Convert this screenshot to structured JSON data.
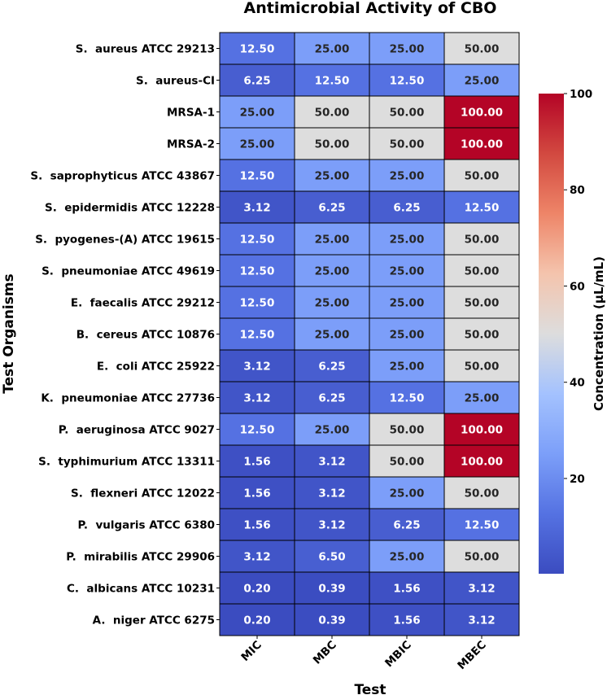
{
  "chart_data": {
    "type": "heatmap",
    "title": "Antimicrobial Activity of CBO",
    "xlabel": "Test",
    "ylabel": "Test Organisms",
    "columns": [
      "MIC",
      "MBC",
      "MBIC",
      "MBEC"
    ],
    "rows": [
      "S.  aureus ATCC 29213",
      "S.  aureus-CI",
      "MRSA-1",
      "MRSA-2",
      "S.  saprophyticus ATCC 43867",
      "S.  epidermidis ATCC 12228",
      "S.  pyogenes-(A) ATCC 19615",
      "S.  pneumoniae ATCC 49619",
      "E.  faecalis ATCC 29212",
      "B.  cereus ATCC 10876",
      "E.  coli ATCC 25922",
      "K.  pneumoniae ATCC 27736",
      "P.  aeruginosa ATCC 9027",
      "S.  typhimurium ATCC 13311",
      "S.  flexneri ATCC 12022",
      "P.  vulgaris ATCC 6380",
      "P.  mirabilis ATCC 29906",
      "C.  albicans ATCC 10231",
      "A.  niger ATCC 6275"
    ],
    "values": [
      [
        12.5,
        25.0,
        25.0,
        50.0
      ],
      [
        6.25,
        12.5,
        12.5,
        25.0
      ],
      [
        25.0,
        50.0,
        50.0,
        100.0
      ],
      [
        25.0,
        50.0,
        50.0,
        100.0
      ],
      [
        12.5,
        25.0,
        25.0,
        50.0
      ],
      [
        3.12,
        6.25,
        6.25,
        12.5
      ],
      [
        12.5,
        25.0,
        25.0,
        50.0
      ],
      [
        12.5,
        25.0,
        25.0,
        50.0
      ],
      [
        12.5,
        25.0,
        25.0,
        50.0
      ],
      [
        12.5,
        25.0,
        25.0,
        50.0
      ],
      [
        3.12,
        6.25,
        25.0,
        50.0
      ],
      [
        3.12,
        6.25,
        12.5,
        25.0
      ],
      [
        12.5,
        25.0,
        50.0,
        100.0
      ],
      [
        1.56,
        3.12,
        50.0,
        100.0
      ],
      [
        1.56,
        3.12,
        25.0,
        50.0
      ],
      [
        1.56,
        3.12,
        6.25,
        12.5
      ],
      [
        3.12,
        6.5,
        25.0,
        50.0
      ],
      [
        0.2,
        0.39,
        1.56,
        3.12
      ],
      [
        0.2,
        0.39,
        1.56,
        3.12
      ]
    ],
    "cell_labels": [
      [
        "12.50",
        "25.00",
        "25.00",
        "50.00"
      ],
      [
        "6.25",
        "12.50",
        "12.50",
        "25.00"
      ],
      [
        "25.00",
        "50.00",
        "50.00",
        "100.00"
      ],
      [
        "25.00",
        "50.00",
        "50.00",
        "100.00"
      ],
      [
        "12.50",
        "25.00",
        "25.00",
        "50.00"
      ],
      [
        "3.12",
        "6.25",
        "6.25",
        "12.50"
      ],
      [
        "12.50",
        "25.00",
        "25.00",
        "50.00"
      ],
      [
        "12.50",
        "25.00",
        "25.00",
        "50.00"
      ],
      [
        "12.50",
        "25.00",
        "25.00",
        "50.00"
      ],
      [
        "12.50",
        "25.00",
        "25.00",
        "50.00"
      ],
      [
        "3.12",
        "6.25",
        "25.00",
        "50.00"
      ],
      [
        "3.12",
        "6.25",
        "12.50",
        "25.00"
      ],
      [
        "12.50",
        "25.00",
        "50.00",
        "100.00"
      ],
      [
        "1.56",
        "3.12",
        "50.00",
        "100.00"
      ],
      [
        "1.56",
        "3.12",
        "25.00",
        "50.00"
      ],
      [
        "1.56",
        "3.12",
        "6.25",
        "12.50"
      ],
      [
        "3.12",
        "6.50",
        "25.00",
        "50.00"
      ],
      [
        "0.20",
        "0.39",
        "1.56",
        "3.12"
      ],
      [
        "0.20",
        "0.39",
        "1.56",
        "3.12"
      ]
    ],
    "colorbar": {
      "label": "Concentration (µL/mL)",
      "range": [
        0.2,
        100
      ],
      "ticks": [
        20,
        40,
        60,
        80,
        100
      ],
      "colormap": "coolwarm"
    }
  }
}
